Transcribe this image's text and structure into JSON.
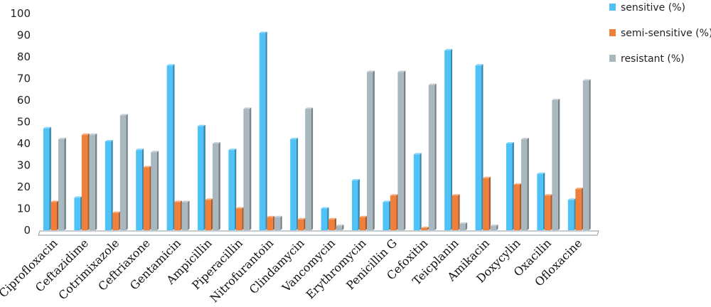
{
  "chart_data": {
    "type": "bar",
    "title": "",
    "xlabel": "",
    "ylabel": "",
    "ylim": [
      0,
      100
    ],
    "yticks": [
      0,
      10,
      20,
      30,
      40,
      50,
      60,
      70,
      80,
      90,
      100
    ],
    "grid": false,
    "legend_position": "top-right",
    "categories": [
      "Ciprofloxacin",
      "Ceftazidime",
      "Cotrimixazole",
      "Ceftriaxone",
      "Gentamicin",
      "Ampicillin",
      "Piperacillin",
      "Nitrofurantoin",
      "Clindamycin",
      "Vancomycin",
      "Erythromycin",
      "Penicillin G",
      "Cefoxitin",
      "Teicplanin",
      "Amikacin",
      "Doxycylin",
      "Oxacilin",
      "Ofloxacine"
    ],
    "series": [
      {
        "name": "sensitive (%)",
        "color": "#4fc3f7",
        "values": [
          47,
          15,
          41,
          37,
          76,
          48,
          37,
          91,
          42,
          10,
          23,
          13,
          35,
          83,
          76,
          40,
          26,
          14
        ]
      },
      {
        "name": "semi-sensitive (%)",
        "color": "#ef7f3a",
        "values": [
          13,
          44,
          8,
          29,
          13,
          14,
          10,
          6,
          5,
          5,
          6,
          16,
          1,
          16,
          24,
          21,
          16,
          19
        ]
      },
      {
        "name": "resistant (%)",
        "color": "#a9b7bf",
        "values": [
          42,
          44,
          53,
          36,
          13,
          40,
          56,
          6,
          56,
          2,
          73,
          73,
          67,
          3,
          2,
          42,
          60,
          69
        ]
      }
    ]
  }
}
